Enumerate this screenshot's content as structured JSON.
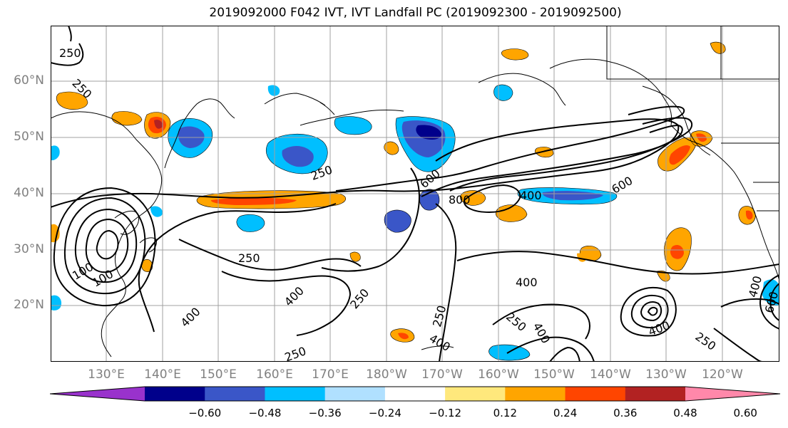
{
  "title": "2019092000 F042 IVT, IVT Landfall PC (2019092300 - 2019092500)",
  "map": {
    "lat_labels": [
      "60°N",
      "50°N",
      "40°N",
      "30°N",
      "20°N"
    ],
    "lon_labels": [
      "130°E",
      "140°E",
      "150°E",
      "160°E",
      "170°E",
      "180°W",
      "170°W",
      "160°W",
      "150°W",
      "140°W",
      "130°W",
      "120°W"
    ],
    "contour_labels": [
      "250",
      "250",
      "600",
      "800",
      "400",
      "600",
      "250",
      "400",
      "250",
      "250",
      "400",
      "400",
      "250",
      "250",
      "400",
      "250",
      "400",
      "250",
      "400",
      "600",
      "400",
      "100",
      "100"
    ]
  },
  "colorbar": {
    "colors": [
      "#9932cc",
      "#00008b",
      "#3a56c8",
      "#00bfff",
      "#b0e0ff",
      "#ffffff",
      "#ffe87c",
      "#ffa500",
      "#ff4500",
      "#b22222",
      "#ff88aa"
    ],
    "ticks": [
      "−0.60",
      "−0.48",
      "−0.36",
      "−0.24",
      "−0.12",
      "0.12",
      "0.24",
      "0.36",
      "0.48",
      "0.60"
    ]
  }
}
